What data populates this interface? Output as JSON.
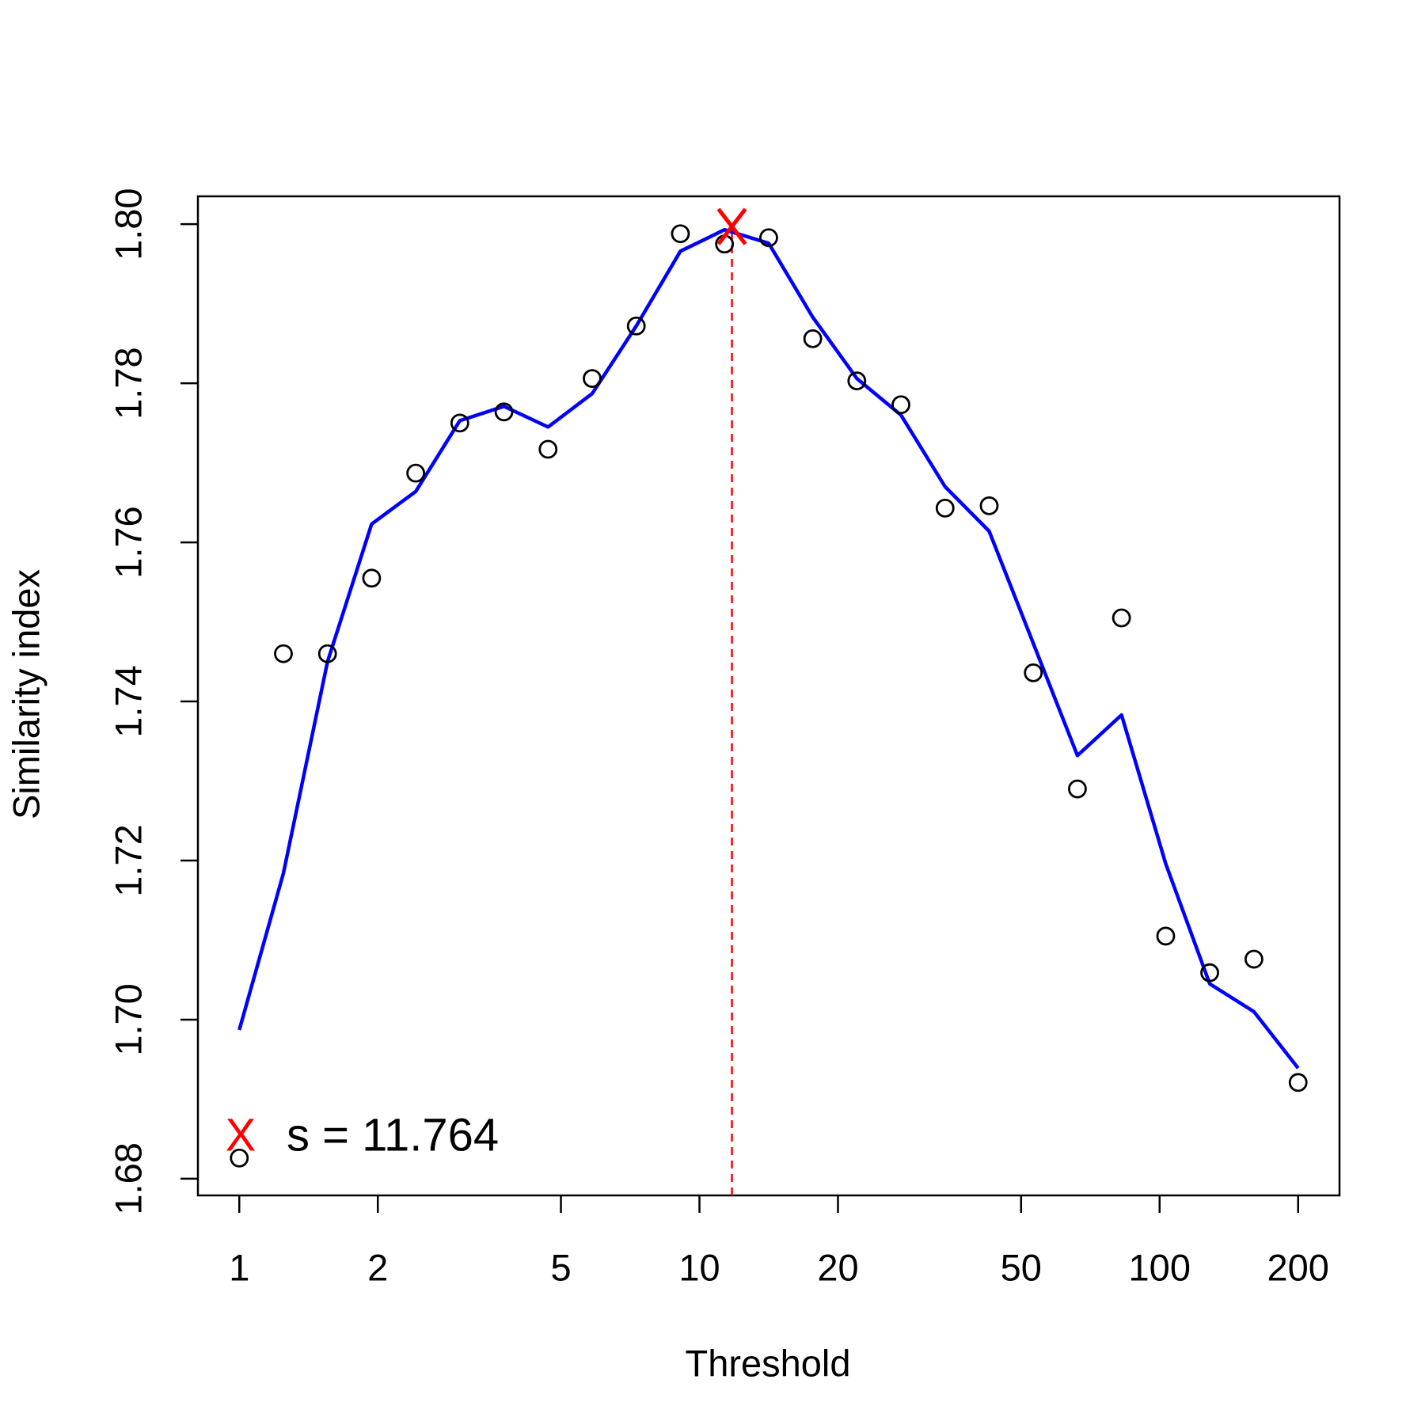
{
  "chart_data": {
    "type": "scatter",
    "xlabel": "Threshold",
    "ylabel": "Similarity index",
    "xscale": "log",
    "xlim": [
      0.813,
      246
    ],
    "ylim": [
      1.6779,
      1.8035
    ],
    "xticks": [
      1,
      2,
      5,
      10,
      20,
      50,
      100,
      200
    ],
    "yticks": [
      {
        "value": 1.68,
        "label": "1.68"
      },
      {
        "value": 1.7,
        "label": "1.70"
      },
      1.72,
      1.74,
      1.76,
      1.78,
      {
        "value": 1.8,
        "label": "1.80"
      }
    ],
    "x": [
      1,
      1.247,
      1.555,
      1.939,
      2.418,
      3.015,
      3.76,
      4.688,
      5.846,
      7.29,
      9.091,
      11.336,
      14.14,
      17.63,
      21.98,
      27.41,
      34.18,
      42.62,
      53.15,
      66.28,
      82.65,
      103.1,
      128.5,
      160.3,
      200
    ],
    "points": {
      "color": "#000000",
      "values": [
        1.6826,
        1.746,
        1.746,
        1.7555,
        1.7687,
        1.775,
        1.7764,
        1.7717,
        1.7806,
        1.7872,
        1.7988,
        1.7975,
        1.7983,
        1.7856,
        1.7803,
        1.7773,
        1.7643,
        1.7646,
        1.7436,
        1.729,
        1.7505,
        1.7105,
        1.7059,
        1.7076,
        1.6921
      ]
    },
    "smooth": {
      "color": "#0000ff",
      "values": [
        1.6987,
        1.7184,
        1.745,
        1.7623,
        1.7664,
        1.7753,
        1.7771,
        1.7745,
        1.7787,
        1.7872,
        1.7966,
        1.7993,
        1.7976,
        1.7883,
        1.7806,
        1.776,
        1.767,
        1.7614,
        1.7473,
        1.7332,
        1.7383,
        1.7196,
        1.7045,
        1.701,
        1.6939
      ]
    },
    "peak": {
      "x": 11.764,
      "y": 1.7997,
      "color": "#ff0000"
    },
    "legend": {
      "marker": "X",
      "label": "s = 11.764",
      "position": "bottomleft"
    }
  }
}
